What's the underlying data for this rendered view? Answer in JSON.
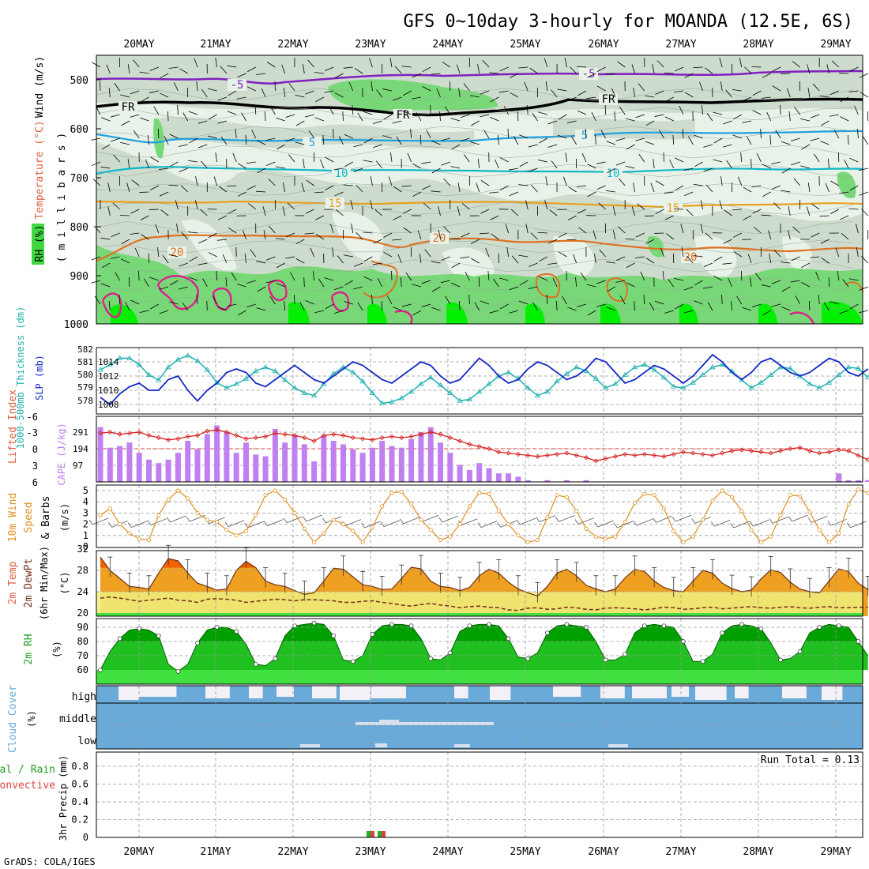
{
  "title": "GFS 0~10day 3-hourly for MOANDA (12.5E, 6S)",
  "footer": "GrADS: COLA/IGES",
  "colors": {
    "rh_light": "#e8f2e8",
    "rh_mid": "#c8d8c8",
    "rh_green": "#78d878",
    "rh_bright": "#00f000",
    "slp": "#1428c8",
    "thickness": "#20b0b0",
    "cape": "#c080f0",
    "lifted": "#d82020",
    "wind10": "#e09020",
    "temp_fill": "#f0a020",
    "temp_hot": "#f06000",
    "dew_fill": "#f0f080",
    "rh2m_dark": "#00a000",
    "rh2m_mid": "#20c020",
    "rh2m_light": "#40e040",
    "cloud": "#6aaad8",
    "cloud_light": "#f4f0f8"
  },
  "date_labels": [
    "20MAY",
    "21MAY",
    "22MAY",
    "23MAY",
    "24MAY",
    "25MAY",
    "26MAY",
    "27MAY",
    "28MAY",
    "29MAY"
  ],
  "panels": {
    "upper_air": {
      "ylabel_rh": "RH (%)",
      "ylabel_temp": "Temperature (°C)",
      "ylabel_wind": "Wind (m/s)",
      "ylabel_mb": "( m i l l i b a r s )",
      "y_ticks": [
        "500",
        "600",
        "700",
        "800",
        "900",
        "1000"
      ],
      "contour_labels": [
        {
          "text": "-5",
          "kind": "purple"
        },
        {
          "text": "-5",
          "kind": "purple"
        },
        {
          "text": "FR",
          "kind": "black"
        },
        {
          "text": "FR",
          "kind": "black"
        },
        {
          "text": "FR",
          "kind": "black"
        },
        {
          "text": "5",
          "kind": "blue"
        },
        {
          "text": "5",
          "kind": "blue"
        },
        {
          "text": "10",
          "kind": "cyan"
        },
        {
          "text": "10",
          "kind": "cyan"
        },
        {
          "text": "15",
          "kind": "orange"
        },
        {
          "text": "15",
          "kind": "orange"
        },
        {
          "text": "20",
          "kind": "dorange"
        },
        {
          "text": "20",
          "kind": "dorange"
        },
        {
          "text": "20",
          "kind": "dorange"
        }
      ]
    },
    "slp_thick": {
      "ylabel_left": "1000-500mb Thickness (dm)",
      "ylabel_right": "SLP (mb)",
      "left_ticks": [
        "582",
        "581",
        "580",
        "579",
        "578"
      ],
      "right_ticks": [
        "1014",
        "1012",
        "1010",
        "1008"
      ]
    },
    "cape_li": {
      "ylabel_left": "Lifted Index",
      "ylabel_right": "CAPE (J/kg)",
      "left_ticks": [
        "-6",
        "-3",
        "0",
        "3",
        "6"
      ],
      "right_ticks": [
        "291",
        "194",
        "97"
      ]
    },
    "wind10": {
      "ylabel": "10m Wind Speed & Barbs (m/s)",
      "ticks": [
        "5",
        "4",
        "3",
        "2",
        "1",
        "0"
      ]
    },
    "temp2m": {
      "ylabel": "2m Temp 2m DewPt (6hr Min/Max) (°C)",
      "ticks": [
        "32",
        "28",
        "24",
        "20"
      ]
    },
    "rh2m": {
      "ylabel": "2m RH (%)",
      "ticks": [
        "90",
        "80",
        "70",
        "60"
      ]
    },
    "cloud": {
      "ylabel": "Cloud Cover (%)",
      "levels": [
        "high",
        "middle",
        "low"
      ]
    },
    "precip": {
      "ylabel": "3hr Precip (mm)",
      "ylabel2": "Total / Rain",
      "ylabel3": "Convective",
      "ticks": [
        "0.8",
        "0.6",
        "0.4",
        "0.2",
        "0"
      ],
      "run_total": "Run Total = 0.13"
    }
  },
  "chart_data": {
    "type": "line",
    "x_start": "19MAY 18Z",
    "x_step_hours": 3,
    "series": [
      {
        "name": "SLP (mb)",
        "values": [
          1009.0,
          1008.0,
          1009.5,
          1010.5,
          1011.0,
          1010.0,
          1010.0,
          1011.5,
          1012.0,
          1010.0,
          1008.5,
          1010.0,
          1011.0,
          1012.5,
          1013.0,
          1012.5,
          1011.0,
          1010.5,
          1011.5,
          1012.5,
          1013.5,
          1012.5,
          1011.5,
          1011.0,
          1012.0,
          1013.0,
          1014.0,
          1013.5,
          1012.5,
          1011.5,
          1011.0,
          1012.0,
          1013.0,
          1014.0,
          1013.5,
          1012.0,
          1011.0,
          1011.5,
          1013.0,
          1014.5,
          1013.5,
          1012.0,
          1011.0,
          1011.5,
          1013.0,
          1014.0,
          1013.5,
          1012.5,
          1011.5,
          1012.0,
          1013.0,
          1014.5,
          1014.0,
          1012.5,
          1011.0,
          1011.5,
          1012.5,
          1013.5,
          1013.0,
          1012.0,
          1011.0,
          1012.0,
          1013.5,
          1015.0,
          1014.0,
          1012.5,
          1011.5,
          1012.5,
          1014.0,
          1014.5,
          1013.5,
          1012.5,
          1012.0,
          1012.5,
          1013.5,
          1014.5,
          1014.0,
          1012.5,
          1012.0,
          1013.0
        ]
      },
      {
        "name": "1000-500mb Thickness (dm)",
        "values": [
          580.4,
          580.8,
          581.3,
          581.3,
          580.8,
          580.0,
          579.6,
          580.6,
          581.2,
          581.5,
          581.1,
          580.4,
          579.4,
          579.0,
          579.3,
          579.7,
          580.3,
          580.6,
          580.3,
          579.6,
          579.0,
          578.6,
          578.4,
          579.3,
          580.1,
          580.6,
          580.2,
          579.5,
          578.6,
          577.8,
          577.9,
          578.2,
          578.7,
          579.3,
          579.8,
          579.2,
          578.6,
          578.0,
          578.1,
          578.7,
          579.3,
          579.9,
          580.2,
          579.7,
          579.0,
          578.4,
          578.7,
          579.5,
          580.1,
          580.6,
          580.3,
          579.7,
          579.0,
          579.3,
          580.0,
          580.6,
          580.8,
          580.4,
          579.8,
          579.1,
          579.0,
          579.4,
          580.0,
          580.6,
          580.8,
          580.3,
          579.6,
          579.0,
          579.4,
          580.0,
          580.6,
          580.5,
          579.9,
          579.3,
          579.0,
          579.4,
          580.0,
          580.6,
          580.5,
          579.8
        ]
      },
      {
        "name": "CAPE (J/kg)",
        "values": [
          320,
          200,
          210,
          230,
          170,
          130,
          110,
          130,
          170,
          240,
          190,
          280,
          330,
          290,
          170,
          230,
          160,
          150,
          310,
          230,
          270,
          220,
          120,
          270,
          240,
          220,
          190,
          170,
          200,
          240,
          210,
          200,
          250,
          290,
          320,
          230,
          170,
          100,
          70,
          110,
          80,
          50,
          50,
          30,
          10,
          0,
          10,
          0,
          10,
          0,
          10,
          0,
          0,
          0,
          0,
          0,
          0,
          0,
          0,
          0,
          0,
          0,
          0,
          0,
          0,
          0,
          0,
          0,
          0,
          0,
          0,
          0,
          0,
          0,
          0,
          0,
          50,
          10,
          10,
          10
        ]
      },
      {
        "name": "Lifted Index",
        "values": [
          -2.8,
          -3.0,
          -2.6,
          -2.8,
          -3.0,
          -2.4,
          -2.0,
          -1.6,
          -1.8,
          -2.2,
          -2.4,
          -3.2,
          -3.4,
          -3.0,
          -2.4,
          -1.8,
          -2.0,
          -2.2,
          -2.8,
          -2.6,
          -2.4,
          -2.0,
          -1.4,
          -2.4,
          -2.6,
          -2.4,
          -2.0,
          -1.8,
          -1.6,
          -2.0,
          -2.2,
          -2.0,
          -2.2,
          -2.6,
          -3.0,
          -2.6,
          -2.0,
          -1.4,
          -0.8,
          -0.4,
          0.0,
          0.6,
          0.8,
          1.0,
          1.2,
          1.4,
          1.2,
          1.0,
          0.8,
          1.2,
          1.6,
          2.2,
          1.8,
          1.4,
          1.0,
          1.2,
          1.0,
          1.2,
          1.4,
          1.0,
          0.6,
          0.8,
          1.0,
          1.2,
          0.8,
          0.4,
          0.2,
          0.4,
          0.6,
          0.8,
          0.4,
          0.0,
          -0.2,
          0.4,
          0.8,
          0.6,
          0.2,
          0.4,
          1.2,
          2.0
        ]
      },
      {
        "name": "10m Wind Speed (m/s)",
        "values": [
          2.8,
          3.4,
          2.0,
          1.2,
          0.7,
          0.6,
          2.8,
          4.2,
          5.0,
          4.3,
          3.0,
          2.4,
          2.2,
          1.5,
          1.0,
          1.4,
          2.8,
          4.6,
          5.0,
          4.2,
          3.0,
          1.6,
          0.4,
          1.2,
          2.4,
          2.0,
          1.4,
          0.4,
          1.7,
          3.6,
          4.8,
          4.9,
          3.8,
          2.4,
          1.5,
          0.6,
          0.9,
          2.0,
          3.6,
          4.8,
          4.7,
          3.2,
          2.0,
          1.0,
          0.4,
          0.6,
          2.6,
          4.6,
          4.4,
          3.2,
          1.6,
          0.9,
          0.7,
          0.9,
          2.2,
          3.9,
          4.7,
          4.6,
          3.4,
          1.4,
          0.4,
          0.9,
          2.4,
          4.1,
          5.0,
          4.4,
          3.2,
          1.5,
          0.4,
          0.9,
          2.8,
          4.6,
          4.5,
          3.1,
          1.5,
          0.4,
          1.2,
          3.8,
          5.1,
          4.8
        ]
      },
      {
        "name": "2m Temp (°C)",
        "values": [
          30.5,
          28.0,
          26.5,
          25.0,
          24.8,
          24.5,
          27.5,
          30.2,
          29.8,
          27.5,
          25.6,
          25.0,
          24.3,
          24.5,
          28.0,
          29.7,
          28.5,
          26.0,
          25.3,
          25.0,
          24.2,
          23.5,
          23.8,
          26.0,
          28.4,
          28.2,
          26.8,
          25.3,
          25.0,
          24.4,
          24.5,
          26.5,
          28.6,
          28.3,
          26.0,
          25.0,
          24.8,
          24.2,
          24.8,
          27.0,
          28.2,
          27.5,
          25.8,
          24.5,
          23.8,
          23.2,
          25.0,
          27.5,
          28.2,
          27.0,
          25.2,
          24.5,
          24.0,
          24.5,
          26.6,
          28.2,
          27.8,
          26.0,
          24.8,
          24.2,
          24.0,
          26.0,
          28.0,
          27.5,
          25.6,
          24.6,
          24.0,
          24.3,
          26.4,
          28.1,
          27.6,
          25.8,
          24.5,
          24.0,
          23.8,
          26.0,
          28.3,
          27.8,
          25.6,
          24.4
        ]
      },
      {
        "name": "2m DewPt (°C)",
        "values": [
          22.8,
          23.0,
          22.8,
          22.5,
          22.2,
          22.4,
          22.6,
          22.8,
          22.4,
          22.3,
          22.0,
          22.6,
          22.7,
          22.6,
          22.4,
          22.0,
          22.2,
          22.4,
          22.6,
          22.5,
          22.3,
          22.5,
          22.5,
          22.4,
          22.3,
          22.0,
          22.0,
          22.2,
          22.3,
          22.0,
          21.8,
          21.5,
          21.3,
          21.6,
          21.8,
          21.5,
          21.3,
          21.0,
          21.2,
          21.3,
          21.1,
          21.0,
          20.6,
          20.5,
          20.9,
          21.0,
          20.7,
          20.8,
          21.1,
          21.0,
          20.7,
          20.6,
          20.9,
          21.0,
          20.9,
          20.8,
          20.6,
          20.8,
          21.1,
          21.0,
          20.7,
          20.8,
          21.0,
          21.1,
          20.8,
          20.9,
          21.1,
          21.2,
          21.0,
          20.9,
          21.1,
          21.2,
          21.0,
          20.9,
          21.1,
          21.2,
          21.0,
          21.0,
          21.1,
          21.1
        ]
      },
      {
        "name": "2m RH (%)",
        "values": [
          60,
          73,
          82,
          88,
          89,
          88,
          84,
          64,
          59,
          64,
          79,
          88,
          90,
          90,
          87,
          78,
          64,
          63,
          68,
          84,
          91,
          92,
          93,
          92,
          84,
          67,
          66,
          70,
          85,
          91,
          92,
          92,
          91,
          82,
          68,
          67,
          72,
          87,
          91,
          92,
          92,
          91,
          82,
          69,
          68,
          72,
          86,
          91,
          92,
          91,
          90,
          80,
          67,
          67,
          71,
          86,
          91,
          92,
          91,
          90,
          80,
          66,
          66,
          71,
          86,
          91,
          92,
          91,
          89,
          79,
          67,
          68,
          73,
          86,
          90,
          92,
          91,
          90,
          80,
          70
        ]
      }
    ]
  }
}
